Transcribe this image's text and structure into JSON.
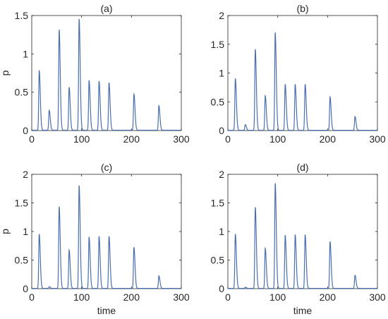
{
  "chart_data": [
    {
      "type": "line",
      "title": "(a)",
      "xlabel": "",
      "ylabel": "p",
      "xlim": [
        0,
        300
      ],
      "ylim": [
        0,
        1.5
      ],
      "xticks": [
        0,
        100,
        200,
        300
      ],
      "yticks": [
        0,
        0.5,
        1,
        1.5
      ],
      "yticklabels": [
        "0",
        "0.5",
        "1",
        "1.5"
      ],
      "grid": false,
      "line_color": "#4a6fb0",
      "peaks": [
        {
          "t": 15,
          "h": 0.78
        },
        {
          "t": 35,
          "h": 0.26
        },
        {
          "t": 55,
          "h": 1.31
        },
        {
          "t": 75,
          "h": 0.56
        },
        {
          "t": 95,
          "h": 1.45
        },
        {
          "t": 115,
          "h": 0.65
        },
        {
          "t": 135,
          "h": 0.64
        },
        {
          "t": 155,
          "h": 0.62
        },
        {
          "t": 205,
          "h": 0.47
        },
        {
          "t": 255,
          "h": 0.32
        }
      ]
    },
    {
      "type": "line",
      "title": "(b)",
      "xlabel": "",
      "ylabel": "",
      "xlim": [
        0,
        300
      ],
      "ylim": [
        0,
        2
      ],
      "xticks": [
        0,
        100,
        200,
        300
      ],
      "yticks": [
        0,
        0.5,
        1,
        1.5,
        2
      ],
      "yticklabels": [
        "0",
        "0.5",
        "1",
        "1.5",
        "2"
      ],
      "grid": false,
      "line_color": "#4a6fb0",
      "peaks": [
        {
          "t": 15,
          "h": 0.9
        },
        {
          "t": 35,
          "h": 0.1
        },
        {
          "t": 55,
          "h": 1.41
        },
        {
          "t": 75,
          "h": 0.6
        },
        {
          "t": 95,
          "h": 1.7
        },
        {
          "t": 115,
          "h": 0.8
        },
        {
          "t": 135,
          "h": 0.8
        },
        {
          "t": 155,
          "h": 0.8
        },
        {
          "t": 205,
          "h": 0.58
        },
        {
          "t": 255,
          "h": 0.24
        }
      ]
    },
    {
      "type": "line",
      "title": "(c)",
      "xlabel": "time",
      "ylabel": "p",
      "xlim": [
        0,
        300
      ],
      "ylim": [
        0,
        2
      ],
      "xticks": [
        0,
        100,
        200,
        300
      ],
      "yticks": [
        0,
        0.5,
        1,
        1.5,
        2
      ],
      "yticklabels": [
        "0",
        "0.5",
        "1",
        "1.5",
        "2"
      ],
      "grid": false,
      "line_color": "#4a6fb0",
      "peaks": [
        {
          "t": 15,
          "h": 0.95
        },
        {
          "t": 35,
          "h": 0.03
        },
        {
          "t": 55,
          "h": 1.43
        },
        {
          "t": 75,
          "h": 0.67
        },
        {
          "t": 95,
          "h": 1.8
        },
        {
          "t": 115,
          "h": 0.9
        },
        {
          "t": 135,
          "h": 0.91
        },
        {
          "t": 155,
          "h": 0.91
        },
        {
          "t": 205,
          "h": 0.72
        },
        {
          "t": 255,
          "h": 0.22
        }
      ]
    },
    {
      "type": "line",
      "title": "(d)",
      "xlabel": "time",
      "ylabel": "",
      "xlim": [
        0,
        300
      ],
      "ylim": [
        0,
        2
      ],
      "xticks": [
        0,
        100,
        200,
        300
      ],
      "yticks": [
        0,
        0.5,
        1,
        1.5,
        2
      ],
      "yticklabels": [
        "0",
        "0.5",
        "1",
        "1.5",
        "2"
      ],
      "grid": false,
      "line_color": "#4a6fb0",
      "peaks": [
        {
          "t": 15,
          "h": 0.95
        },
        {
          "t": 35,
          "h": 0.02
        },
        {
          "t": 55,
          "h": 1.42
        },
        {
          "t": 75,
          "h": 0.7
        },
        {
          "t": 95,
          "h": 1.84
        },
        {
          "t": 115,
          "h": 0.93
        },
        {
          "t": 135,
          "h": 0.94
        },
        {
          "t": 155,
          "h": 0.94
        },
        {
          "t": 205,
          "h": 0.82
        },
        {
          "t": 255,
          "h": 0.23
        }
      ]
    }
  ]
}
